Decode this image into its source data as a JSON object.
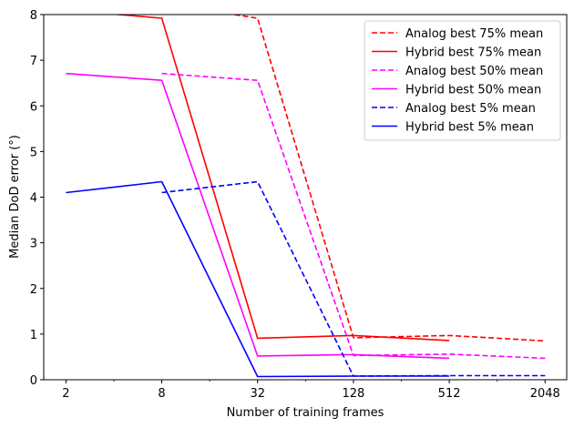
{
  "chart_data": {
    "type": "line",
    "title": "",
    "xlabel": "Number of training frames",
    "ylabel": "Median DoD error (°)",
    "xscale": "log2",
    "xlim": [
      1.45,
      2800
    ],
    "ylim": [
      0,
      8
    ],
    "xticks": [
      2,
      8,
      32,
      128,
      512,
      2048
    ],
    "xtick_labels": [
      "2",
      "8",
      "32",
      "128",
      "512",
      "2048"
    ],
    "yticks": [
      0,
      1,
      2,
      3,
      4,
      5,
      6,
      7,
      8
    ],
    "ytick_labels": [
      "0",
      "1",
      "2",
      "3",
      "4",
      "5",
      "6",
      "7",
      "8"
    ],
    "grid": false,
    "legend_position": "top-right",
    "series": [
      {
        "name": "Analog best 75% mean",
        "color": "#ff0000",
        "dash": "dashed",
        "x": [
          8,
          32,
          128,
          512,
          2048
        ],
        "y": [
          8.25,
          7.92,
          0.92,
          0.97,
          0.85
        ]
      },
      {
        "name": "Hybrid best 75% mean",
        "color": "#ff0000",
        "dash": "solid",
        "x": [
          2,
          8,
          32,
          128,
          512
        ],
        "y": [
          8.1,
          7.92,
          0.91,
          0.97,
          0.86
        ]
      },
      {
        "name": "Analog best 50% mean",
        "color": "#ff00ff",
        "dash": "dashed",
        "x": [
          8,
          32,
          128,
          512,
          2048
        ],
        "y": [
          6.71,
          6.56,
          0.53,
          0.56,
          0.47
        ]
      },
      {
        "name": "Hybrid best 50% mean",
        "color": "#ff00ff",
        "dash": "solid",
        "x": [
          2,
          8,
          32,
          128,
          512
        ],
        "y": [
          6.71,
          6.56,
          0.52,
          0.55,
          0.47
        ]
      },
      {
        "name": "Analog best 5% mean",
        "color": "#0000ff",
        "dash": "dashed",
        "x": [
          8,
          32,
          128,
          512,
          2048
        ],
        "y": [
          4.1,
          4.34,
          0.08,
          0.09,
          0.09
        ]
      },
      {
        "name": "Hybrid best 5% mean",
        "color": "#0000ff",
        "dash": "solid",
        "x": [
          2,
          8,
          32,
          128,
          512
        ],
        "y": [
          4.1,
          4.34,
          0.07,
          0.08,
          0.08
        ]
      }
    ]
  }
}
